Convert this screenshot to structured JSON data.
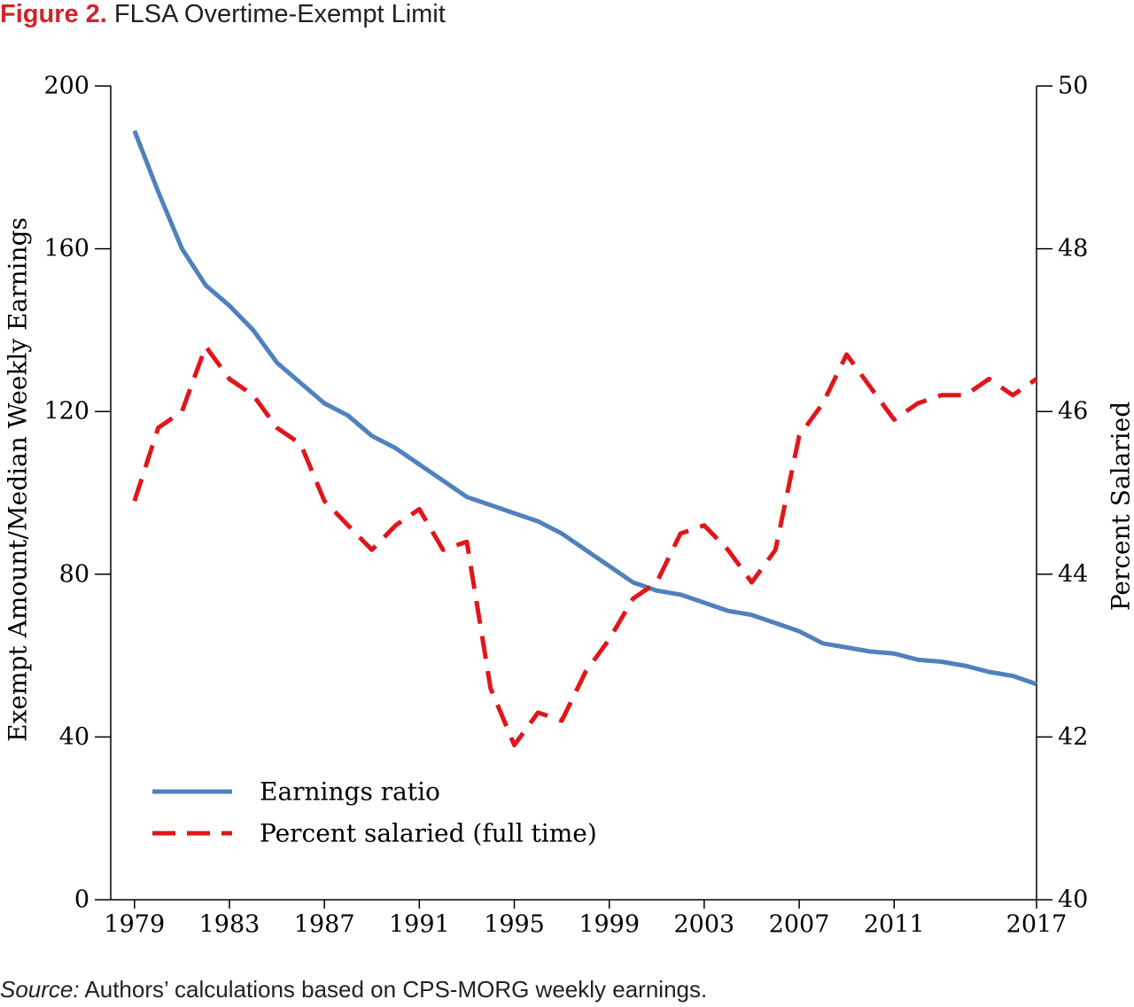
{
  "figure": {
    "number": "Figure 2.",
    "title": "FLSA Overtime-Exempt Limit",
    "source_label": "Source:",
    "source_text": "Authors’ calculations based on CPS-MORG weekly earnings."
  },
  "colors": {
    "title_accent": "#d2232a",
    "earnings_ratio": "#4f81bd",
    "percent_salaried": "#e0161a",
    "axis": "#000000"
  },
  "chart_data": {
    "type": "line",
    "title": "FLSA Overtime-Exempt Limit",
    "xlabel": "",
    "ylabel": "Exempt Amount/Median Weekly Earnings",
    "y2label": "Percent Salaried",
    "xlim": [
      1978,
      2017
    ],
    "ylim": [
      0,
      200
    ],
    "y2lim": [
      40,
      50
    ],
    "x_ticks": [
      "1979",
      "1983",
      "1987",
      "1991",
      "1995",
      "1999",
      "2003",
      "2007",
      "2011",
      "2017"
    ],
    "x_tick_values": [
      1979,
      1983,
      1987,
      1991,
      1995,
      1999,
      2003,
      2007,
      2011,
      2017
    ],
    "y_ticks": [
      "0",
      "40",
      "80",
      "120",
      "160",
      "200"
    ],
    "y_tick_values": [
      0,
      40,
      80,
      120,
      160,
      200
    ],
    "y2_ticks": [
      "40",
      "42",
      "44",
      "46",
      "48",
      "50"
    ],
    "y2_tick_values": [
      40,
      42,
      44,
      46,
      48,
      50
    ],
    "grid": false,
    "legend": "bottom-left",
    "x": [
      1979,
      1980,
      1981,
      1982,
      1983,
      1984,
      1985,
      1986,
      1987,
      1988,
      1989,
      1990,
      1991,
      1992,
      1993,
      1994,
      1995,
      1996,
      1997,
      1998,
      1999,
      2000,
      2001,
      2002,
      2003,
      2004,
      2005,
      2006,
      2007,
      2008,
      2009,
      2010,
      2011,
      2012,
      2013,
      2014,
      2015,
      2016,
      2017
    ],
    "series": [
      {
        "name": "Earnings ratio",
        "axis": "left",
        "style": "solid",
        "values": [
          189,
          174,
          160,
          151,
          146,
          140,
          132,
          127,
          122,
          119,
          114,
          111,
          107,
          103,
          99,
          97,
          95,
          93,
          90,
          86,
          82,
          78,
          76,
          75,
          73,
          71,
          70,
          68,
          66,
          63,
          62,
          61,
          60.5,
          59,
          58.5,
          57.5,
          56,
          55,
          53
        ]
      },
      {
        "name": "Percent salaried (full time)",
        "axis": "right",
        "style": "dashed",
        "values": [
          44.9,
          45.8,
          46.0,
          46.8,
          46.4,
          46.2,
          45.8,
          45.6,
          44.9,
          44.6,
          44.3,
          44.6,
          44.8,
          44.3,
          44.4,
          42.6,
          41.9,
          42.3,
          42.2,
          42.8,
          43.2,
          43.7,
          43.9,
          44.5,
          44.6,
          44.3,
          43.9,
          44.3,
          45.7,
          46.1,
          46.7,
          46.3,
          45.9,
          46.1,
          46.2,
          46.2,
          46.4,
          46.2,
          46.4
        ]
      }
    ]
  }
}
